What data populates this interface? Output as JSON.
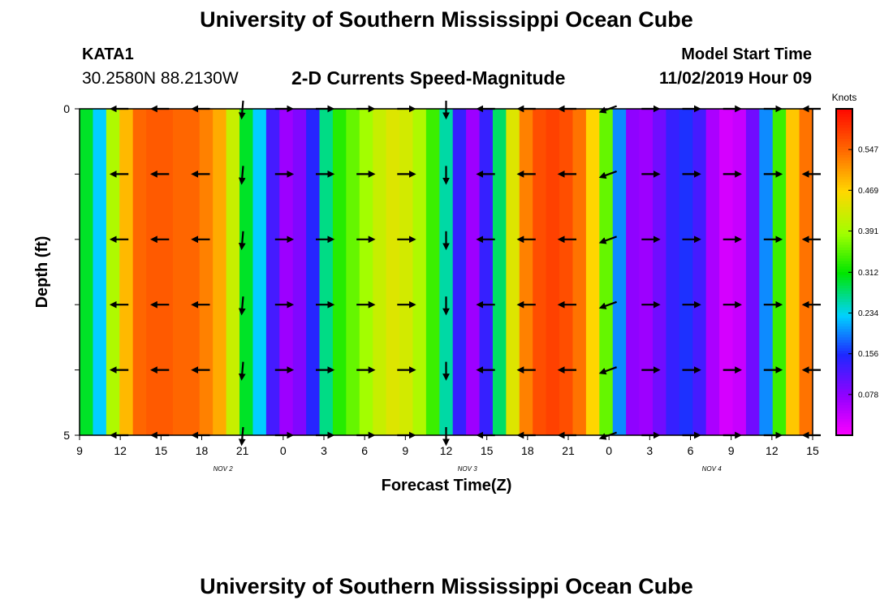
{
  "header": {
    "title": "University of Southern Mississippi Ocean Cube",
    "station": "KATA1",
    "coords": "30.2580N 88.2130W",
    "subtitle": "2-D Currents Speed-Magnitude",
    "model_start_label": "Model Start Time",
    "model_start_value": "11/02/2019 Hour 09",
    "footer_title": "University of Southern Mississippi Ocean Cube"
  },
  "chart_data": {
    "type": "heatmap",
    "title": "2-D Currents Speed-Magnitude",
    "xlabel": "Forecast Time(Z)",
    "ylabel": "Depth (ft)",
    "ylim": [
      0,
      5
    ],
    "y_tick_labels": [
      "0",
      "5"
    ],
    "x_tick_labels": [
      "9",
      "12",
      "15",
      "18",
      "21",
      "0",
      "3",
      "6",
      "9",
      "12",
      "15",
      "18",
      "21",
      "0",
      "3",
      "6",
      "9",
      "12",
      "15"
    ],
    "date_labels": [
      {
        "label": "NOV 2",
        "at_tick": 4
      },
      {
        "label": "NOV 3",
        "at_tick": 10
      },
      {
        "label": "NOV 4",
        "at_tick": 16
      }
    ],
    "forecast_hours_from_start": [
      0,
      1,
      2,
      3,
      4,
      5,
      6,
      7,
      8,
      9,
      10,
      11,
      12,
      13,
      14,
      15,
      16,
      17,
      18,
      19,
      20,
      21,
      22,
      23,
      24,
      25,
      26,
      27,
      28,
      29,
      30,
      31,
      32,
      33,
      34,
      35,
      36,
      37,
      38,
      39,
      40,
      41,
      42,
      43,
      44,
      45,
      46,
      47,
      48,
      49,
      50,
      51,
      52,
      53,
      54
    ],
    "speed_knots": [
      0.3,
      0.23,
      0.4,
      0.49,
      0.55,
      0.56,
      0.56,
      0.55,
      0.55,
      0.53,
      0.5,
      0.42,
      0.3,
      0.23,
      0.13,
      0.07,
      0.09,
      0.15,
      0.27,
      0.33,
      0.36,
      0.39,
      0.42,
      0.44,
      0.43,
      0.4,
      0.34,
      0.26,
      0.14,
      0.07,
      0.14,
      0.28,
      0.44,
      0.53,
      0.57,
      0.58,
      0.57,
      0.54,
      0.47,
      0.36,
      0.2,
      0.08,
      0.07,
      0.1,
      0.14,
      0.16,
      0.13,
      0.06,
      0.03,
      0.04,
      0.1,
      0.2,
      0.34,
      0.48,
      0.54
    ],
    "colorbar": {
      "label": "Knots",
      "ticks": [
        0.078,
        0.156,
        0.234,
        0.312,
        0.391,
        0.469,
        0.547
      ],
      "range": [
        0,
        0.625
      ]
    },
    "vector_columns_hours": [
      3,
      6,
      9,
      12,
      15,
      18,
      21,
      24,
      27,
      30,
      33,
      36,
      39,
      42,
      45,
      48,
      51,
      54
    ],
    "vector_direction_deg": [
      180,
      180,
      180,
      265,
      0,
      0,
      0,
      0,
      270,
      180,
      180,
      180,
      200,
      0,
      0,
      0,
      0,
      180
    ],
    "vector_rows_depth_ft": [
      0,
      1,
      2,
      3,
      4,
      5
    ],
    "grid": false
  }
}
